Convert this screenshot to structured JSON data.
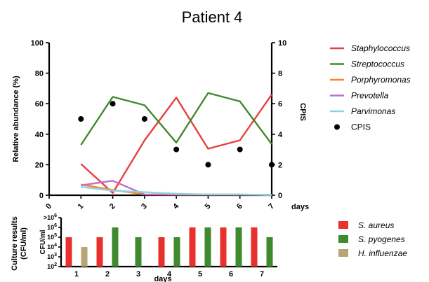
{
  "chart_data": [
    {
      "type": "line",
      "title": "Patient 4",
      "xlabel": "days",
      "ylabel": "Relative abundance (%)",
      "ylabel_right": "CPIS",
      "x": [
        1,
        2,
        3,
        4,
        5,
        6,
        7
      ],
      "x_ticks": [
        "0",
        "1",
        "2",
        "3",
        "4",
        "5",
        "6",
        "7"
      ],
      "xlim": [
        0,
        7
      ],
      "ylim": [
        0,
        100
      ],
      "y_ticks": [
        "0",
        "20",
        "40",
        "60",
        "80",
        "100"
      ],
      "ylim_right": [
        0,
        10
      ],
      "y_ticks_right": [
        "0",
        "2",
        "4",
        "6",
        "8",
        "10"
      ],
      "series": [
        {
          "name": "Staphylococcus",
          "color": "#e8403a",
          "italic": true,
          "values": [
            20.5,
            1.5,
            36,
            64,
            30.5,
            36,
            66
          ]
        },
        {
          "name": "Streptococcus",
          "color": "#3f8a2e",
          "italic": true,
          "values": [
            33,
            64.5,
            59,
            34.5,
            67,
            61.5,
            33.5
          ]
        },
        {
          "name": "Porphyromonas",
          "color": "#f38a2a",
          "italic": true,
          "values": [
            7,
            3.5,
            0.5,
            0.3,
            0.3,
            0.3,
            0.2
          ]
        },
        {
          "name": "Prevotella",
          "color": "#c46fc6",
          "italic": true,
          "values": [
            6.5,
            9.5,
            0.5,
            0.5,
            0.5,
            0.5,
            0.2
          ]
        },
        {
          "name": "Parvimonas",
          "color": "#8fd3e3",
          "italic": true,
          "values": [
            5.5,
            3,
            2,
            1,
            0.5,
            0.5,
            0.2
          ]
        }
      ],
      "cpis": {
        "name": "CPIS",
        "color": "#000000",
        "values": [
          5,
          6,
          5,
          3,
          2,
          3,
          2
        ]
      },
      "legend": "right"
    },
    {
      "type": "bar",
      "xlabel": "days",
      "ylabel_lines": [
        "Culture results",
        "(CFU/ml)"
      ],
      "ylabel_inner": "CFU/ml",
      "categories": [
        "1",
        "2",
        "3",
        "4",
        "5",
        "6",
        "7"
      ],
      "y_scale": "log",
      "ylim": [
        100,
        1000000
      ],
      "y_ticks": [
        {
          "pre": "",
          "base": "10",
          "exp": "2"
        },
        {
          "pre": "",
          "base": "10",
          "exp": "3"
        },
        {
          "pre": "",
          "base": "10",
          "exp": "4"
        },
        {
          "pre": "",
          "base": "10",
          "exp": "5"
        },
        {
          "pre": "",
          "base": "10",
          "exp": "6"
        },
        {
          "pre": ">",
          "base": "10",
          "exp": "6"
        }
      ],
      "series": [
        {
          "name": "S. aureus",
          "color": "#e8302c",
          "values": [
            100000,
            100000,
            null,
            100000,
            1000000,
            1000000,
            1000000
          ]
        },
        {
          "name": "S. pyogenes",
          "color": "#3f8a2e",
          "values": [
            null,
            1000000,
            100000,
            100000,
            1000000,
            1000000,
            100000
          ]
        },
        {
          "name": "H. influenzae",
          "color": "#b8a577",
          "values": [
            10000,
            null,
            null,
            null,
            null,
            null,
            null
          ]
        }
      ],
      "legend": "right"
    }
  ]
}
